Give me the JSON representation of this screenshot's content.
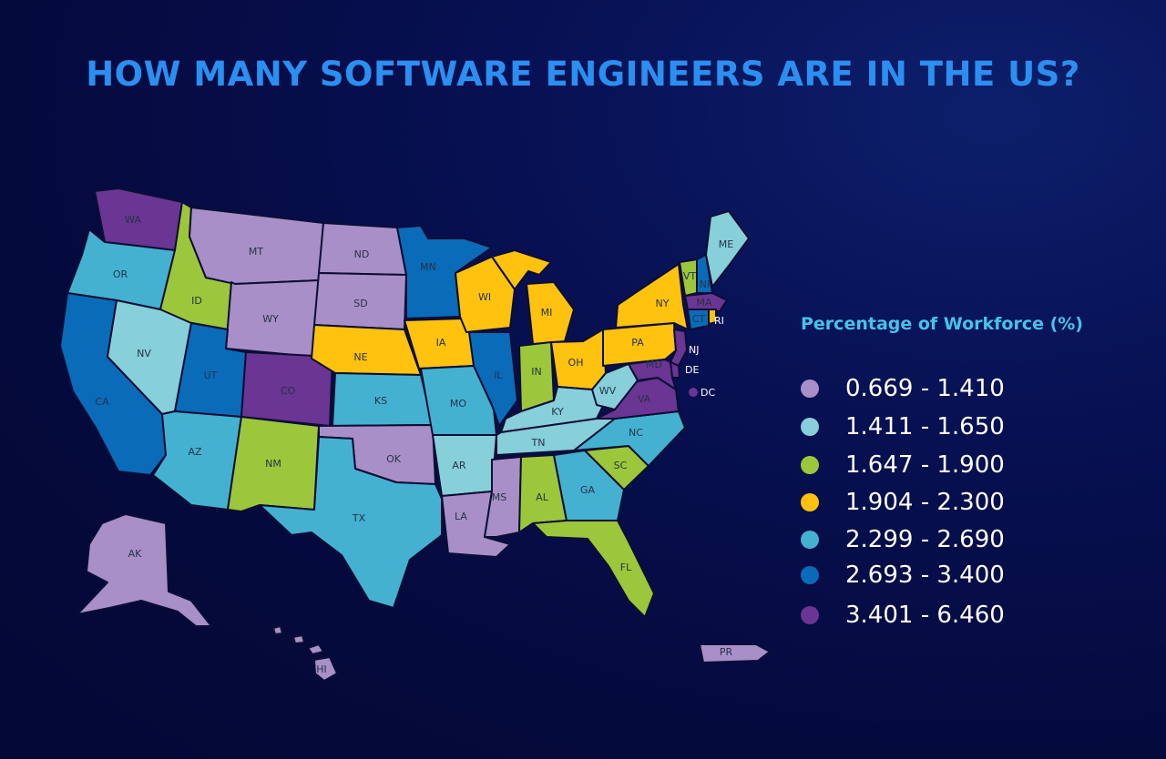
{
  "title": "HOW MANY SOFTWARE ENGINEERS ARE IN THE US?",
  "legend": {
    "title": "Percentage of Workforce (%)",
    "items": [
      {
        "label": "0.669 - 1.410",
        "color": "#a98fc7"
      },
      {
        "label": "1.411 - 1.650",
        "color": "#87cfd9"
      },
      {
        "label": "1.647 - 1.900",
        "color": "#9dc73a"
      },
      {
        "label": "1.904 - 2.300",
        "color": "#ffc20e"
      },
      {
        "label": "2.299 - 2.690",
        "color": "#45b1d0"
      },
      {
        "label": "2.693 - 3.400",
        "color": "#0a6bb8"
      },
      {
        "label": "3.401 - 6.460",
        "color": "#6a3593"
      }
    ]
  },
  "states": [
    {
      "abbr": "WA",
      "bin": 6
    },
    {
      "abbr": "OR",
      "bin": 4
    },
    {
      "abbr": "CA",
      "bin": 5
    },
    {
      "abbr": "ID",
      "bin": 2
    },
    {
      "abbr": "NV",
      "bin": 1
    },
    {
      "abbr": "MT",
      "bin": 0
    },
    {
      "abbr": "WY",
      "bin": 0
    },
    {
      "abbr": "UT",
      "bin": 5
    },
    {
      "abbr": "AZ",
      "bin": 4
    },
    {
      "abbr": "CO",
      "bin": 6
    },
    {
      "abbr": "NM",
      "bin": 2
    },
    {
      "abbr": "ND",
      "bin": 0
    },
    {
      "abbr": "SD",
      "bin": 0
    },
    {
      "abbr": "NE",
      "bin": 3
    },
    {
      "abbr": "KS",
      "bin": 4
    },
    {
      "abbr": "OK",
      "bin": 0
    },
    {
      "abbr": "TX",
      "bin": 4
    },
    {
      "abbr": "MN",
      "bin": 5
    },
    {
      "abbr": "IA",
      "bin": 3
    },
    {
      "abbr": "MO",
      "bin": 4
    },
    {
      "abbr": "AR",
      "bin": 1
    },
    {
      "abbr": "LA",
      "bin": 0
    },
    {
      "abbr": "WI",
      "bin": 3
    },
    {
      "abbr": "IL",
      "bin": 5
    },
    {
      "abbr": "MI",
      "bin": 3
    },
    {
      "abbr": "IN",
      "bin": 2
    },
    {
      "abbr": "OH",
      "bin": 3
    },
    {
      "abbr": "KY",
      "bin": 1
    },
    {
      "abbr": "TN",
      "bin": 1
    },
    {
      "abbr": "MS",
      "bin": 0
    },
    {
      "abbr": "AL",
      "bin": 2
    },
    {
      "abbr": "GA",
      "bin": 4
    },
    {
      "abbr": "FL",
      "bin": 2
    },
    {
      "abbr": "SC",
      "bin": 2
    },
    {
      "abbr": "NC",
      "bin": 4
    },
    {
      "abbr": "VA",
      "bin": 6
    },
    {
      "abbr": "WV",
      "bin": 1
    },
    {
      "abbr": "PA",
      "bin": 3
    },
    {
      "abbr": "NY",
      "bin": 3
    },
    {
      "abbr": "VT",
      "bin": 2
    },
    {
      "abbr": "NH",
      "bin": 5
    },
    {
      "abbr": "ME",
      "bin": 1
    },
    {
      "abbr": "MA",
      "bin": 6
    },
    {
      "abbr": "CT",
      "bin": 5
    },
    {
      "abbr": "RI",
      "bin": 3
    },
    {
      "abbr": "NJ",
      "bin": 6
    },
    {
      "abbr": "DE",
      "bin": 6
    },
    {
      "abbr": "MD",
      "bin": 6
    },
    {
      "abbr": "DC",
      "bin": 6
    },
    {
      "abbr": "AK",
      "bin": 0
    },
    {
      "abbr": "HI",
      "bin": 0
    },
    {
      "abbr": "PR",
      "bin": 0
    }
  ]
}
